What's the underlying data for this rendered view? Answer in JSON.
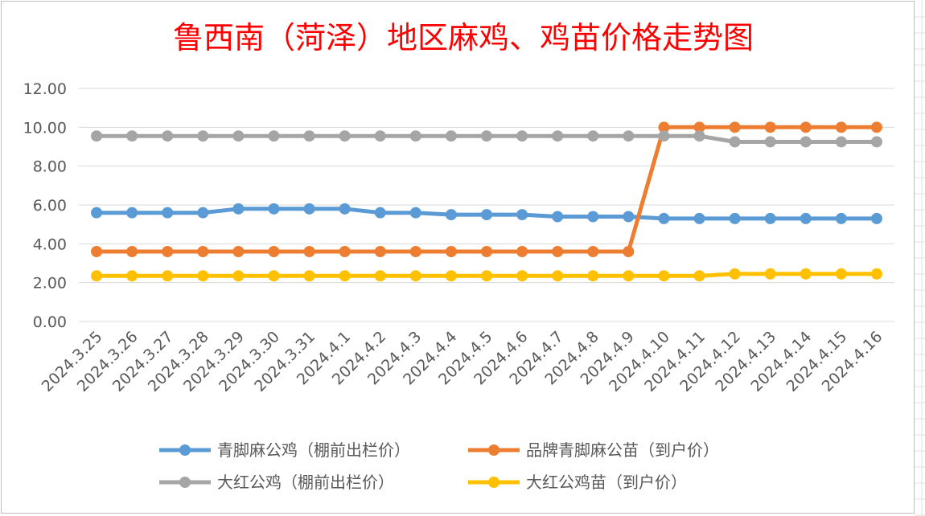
{
  "chart_data": {
    "type": "line",
    "title": "鲁西南（菏泽）地区麻鸡、鸡苗价格走势图",
    "xlabel": "",
    "ylabel": "",
    "ylim": [
      0,
      12
    ],
    "yticks": [
      "0.00",
      "2.00",
      "4.00",
      "6.00",
      "8.00",
      "10.00",
      "12.00"
    ],
    "grid": true,
    "legend_position": "bottom",
    "categories": [
      "2024.3.25",
      "2024.3.26",
      "2024.3.27",
      "2024.3.28",
      "2024.3.29",
      "2024.3.30",
      "2024.3.31",
      "2024.4.1",
      "2024.4.2",
      "2024.4.3",
      "2024.4.4",
      "2024.4.5",
      "2024.4.6",
      "2024.4.7",
      "2024.4.8",
      "2024.4.9",
      "2024.4.10",
      "2024.4.11",
      "2024.4.12",
      "2024.4.13",
      "2024.4.14",
      "2024.4.15",
      "2024.4.16"
    ],
    "series": [
      {
        "name": "青脚麻公鸡（棚前出栏价）",
        "color": "#5b9bd5",
        "values": [
          5.6,
          5.6,
          5.6,
          5.6,
          5.8,
          5.8,
          5.8,
          5.8,
          5.6,
          5.6,
          5.5,
          5.5,
          5.5,
          5.4,
          5.4,
          5.4,
          5.3,
          5.3,
          5.3,
          5.3,
          5.3,
          5.3,
          5.3
        ]
      },
      {
        "name": "品牌青脚麻公苗（到户价）",
        "color": "#ed7d31",
        "values": [
          3.6,
          3.6,
          3.6,
          3.6,
          3.6,
          3.6,
          3.6,
          3.6,
          3.6,
          3.6,
          3.6,
          3.6,
          3.6,
          3.6,
          3.6,
          3.6,
          10.0,
          10.0,
          10.0,
          10.0,
          10.0,
          10.0,
          10.0
        ]
      },
      {
        "name": "大红公鸡（棚前出栏价）",
        "color": "#a5a5a5",
        "values": [
          9.55,
          9.55,
          9.55,
          9.55,
          9.55,
          9.55,
          9.55,
          9.55,
          9.55,
          9.55,
          9.55,
          9.55,
          9.55,
          9.55,
          9.55,
          9.55,
          9.55,
          9.55,
          9.25,
          9.25,
          9.25,
          9.25,
          9.25
        ]
      },
      {
        "name": "大红公鸡苗（到户价）",
        "color": "#ffc000",
        "values": [
          2.35,
          2.35,
          2.35,
          2.35,
          2.35,
          2.35,
          2.35,
          2.35,
          2.35,
          2.35,
          2.35,
          2.35,
          2.35,
          2.35,
          2.35,
          2.35,
          2.35,
          2.35,
          2.45,
          2.45,
          2.45,
          2.45,
          2.45
        ]
      }
    ]
  }
}
